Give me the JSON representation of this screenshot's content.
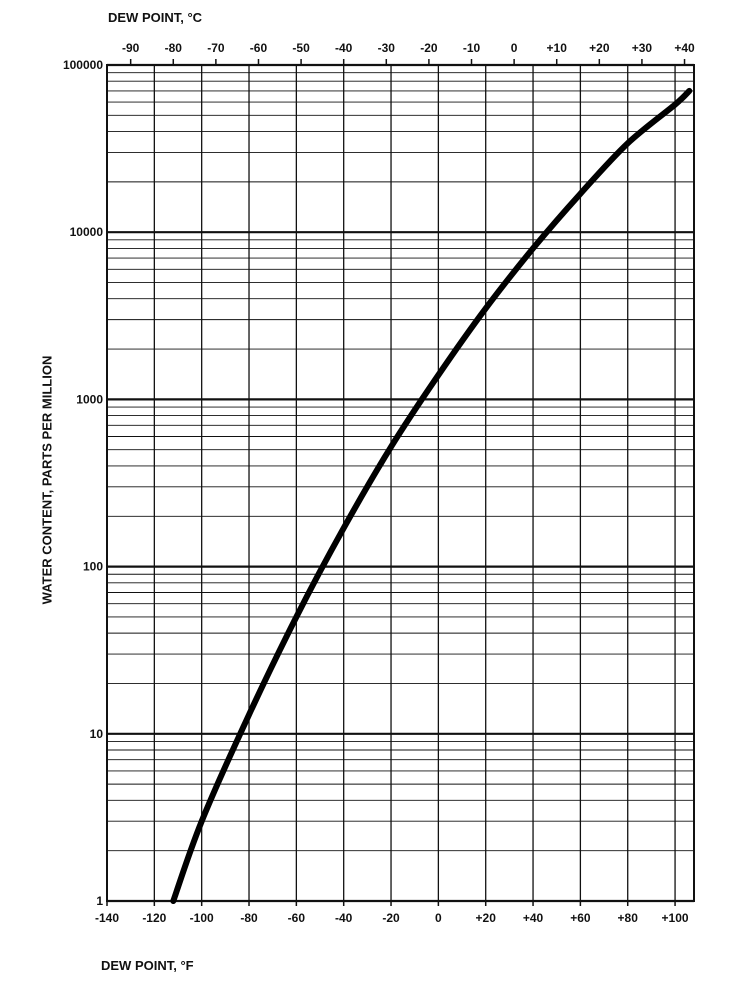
{
  "chart_data": {
    "type": "line",
    "title": "",
    "xlabel": "DEW POINT, °F",
    "x2label": "DEW POINT, °C",
    "ylabel": "WATER CONTENT, PARTS PER MILLION",
    "xlim": [
      -140,
      108
    ],
    "ylim": [
      1,
      100000
    ],
    "yscale": "log",
    "grid": true,
    "x_ticks": [
      -140,
      -120,
      -100,
      -80,
      -60,
      -40,
      -20,
      0,
      20,
      40,
      60,
      80,
      100
    ],
    "x_tick_labels": [
      "-140",
      "-120",
      "-100",
      "-80",
      "-60",
      "-40",
      "-20",
      "0",
      "+20",
      "+40",
      "+60",
      "+80",
      "+100"
    ],
    "x2_ticks": [
      -90,
      -80,
      -70,
      -60,
      -50,
      -40,
      -30,
      -20,
      -10,
      0,
      10,
      20,
      30,
      40
    ],
    "x2_tick_labels": [
      "-90",
      "-80",
      "-70",
      "-60",
      "-50",
      "-40",
      "-30",
      "-20",
      "-10",
      "0",
      "+10",
      "+20",
      "+30",
      "+40"
    ],
    "y_ticks": [
      1,
      10,
      100,
      1000,
      10000,
      100000
    ],
    "y_tick_labels": [
      "1",
      "10",
      "100",
      "1000",
      "10000",
      "100000"
    ],
    "series": [
      {
        "x": [
          -112,
          -100,
          -80,
          -60,
          -40,
          -20,
          0,
          20,
          40,
          60,
          80,
          100,
          106
        ],
        "y": [
          1,
          3,
          13,
          50,
          170,
          520,
          1400,
          3500,
          8000,
          17000,
          34000,
          58000,
          70000
        ]
      }
    ]
  }
}
